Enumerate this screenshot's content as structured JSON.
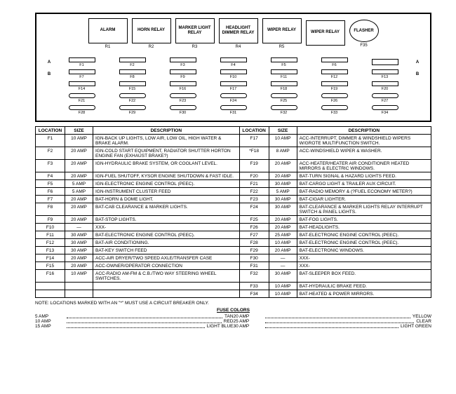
{
  "panel": {
    "relays": [
      {
        "label": "ALARM",
        "id": "R1"
      },
      {
        "label": "HORN RELAY",
        "id": "R2"
      },
      {
        "label": "MARKER LIGHT RELAY",
        "id": "R3"
      },
      {
        "label": "HEADLIGHT DIMMER RELAY",
        "id": "R4"
      },
      {
        "label": "WIPER RELAY",
        "id": "R5"
      },
      {
        "label": "WIPER RELAY",
        "id": ""
      }
    ],
    "flasher": {
      "label": "FLASHER",
      "id": "F35"
    },
    "fuse_rows": [
      {
        "left": "A",
        "right": "A",
        "shape": "rect",
        "labels": [
          "F1",
          "F2",
          "F3",
          "F4",
          "F5",
          "F6",
          ""
        ]
      },
      {
        "left": "B",
        "right": "B",
        "shape": "rect",
        "labels": [
          "F7",
          "F8",
          "F9",
          "F10",
          "F11",
          "F12",
          "F13"
        ]
      },
      {
        "left": "",
        "right": "",
        "shape": "rect",
        "labels": [
          "F14",
          "F15",
          "F16",
          "F17",
          "F18",
          "F19",
          "F20"
        ]
      },
      {
        "left": "",
        "right": "",
        "shape": "oval",
        "labels": [
          "F21",
          "F22",
          "F23",
          "F24",
          "F25",
          "F26",
          "F27"
        ]
      },
      {
        "left": "",
        "right": "",
        "shape": "oval",
        "labels": [
          "F28",
          "F29",
          "F30",
          "F31",
          "F32",
          "F33",
          "F34"
        ]
      }
    ]
  },
  "headers": {
    "location": "LOCATION",
    "size": "SIZE",
    "description": "DESCRIPTION"
  },
  "rows_left": [
    {
      "loc": "F1",
      "size": "10 AMP",
      "desc": "IGN-BACK UP LIGHTS, LOW AIR, LOW OIL, HIGH WATER & BRAKE ALARM."
    },
    {
      "loc": "F2",
      "size": "20 AMP",
      "desc": "IGN-COLD START EQUIPMENT, RADIATOR SHUTTER HORTON ENGINE FAN (EXHAUST BRAKE?)"
    },
    {
      "loc": "F3",
      "size": "20 AMP",
      "desc": "IGN-HYDRAULIC BRAKE SYSTEM, OR COOLANT LEVEL."
    },
    {
      "loc": "F4",
      "size": "20 AMP",
      "desc": "IGN-FUEL SHUTOFF, KYSOR ENGINE SHUTDOWN & FAST IDLE."
    },
    {
      "loc": "F5",
      "size": "5 AMP",
      "desc": "IGN-ELECTRONIC ENGINE CONTROL (PEEC)."
    },
    {
      "loc": "F6",
      "size": "5 AMP",
      "desc": "IGN-INSTRUMENT CLUSTER FEED"
    },
    {
      "loc": "F7",
      "size": "20 AMP",
      "desc": "BAT-HORN & DOME LIGHT."
    },
    {
      "loc": "F8",
      "size": "20 AMP",
      "desc": "BAT-CAB CLEARANCE & MARKER LIGHTS."
    },
    {
      "loc": "F9",
      "size": "20 AMP",
      "desc": "BAT-STOP LIGHTS."
    },
    {
      "loc": "F10",
      "size": "—",
      "desc": "XXX-"
    },
    {
      "loc": "F11",
      "size": "30 AMP",
      "desc": "BAT-ELECTRONIC ENGINE CONTROL (PEEC)."
    },
    {
      "loc": "F12",
      "size": "30 AMP",
      "desc": "BAT-AIR CONDITIONING."
    },
    {
      "loc": "F13",
      "size": "30 AMP",
      "desc": "BAT-KEY SWITCH FEED"
    },
    {
      "loc": "F14",
      "size": "20 AMP",
      "desc": "ACC-AIR DRYER/TWO SPEED AXLE/TRANSFER CASE"
    },
    {
      "loc": "F15",
      "size": "20 AMP",
      "desc": "ACC-OWNER/OPERATOR CONNECTION"
    },
    {
      "loc": "F16",
      "size": "10 AMP",
      "desc": "ACC-RADIO AM-FM & C.B./TWO WAY STEERING WHEEL SWITCHES."
    }
  ],
  "rows_right": [
    {
      "loc": "F17",
      "size": "10 AMP",
      "desc": "ACC-INTERRUPT, DIMMER & WINDSHIELD WIPERS W/GROTE MULTIFUNCTION SWITCH."
    },
    {
      "loc": "*F18",
      "size": "8 AMP",
      "desc": "ACC-WINDSHIELD WIPER & WASHER."
    },
    {
      "loc": "F19",
      "size": "20 AMP",
      "desc": "ACC-HEATER/HEATER AIR CONDITIONER HEATED MIRRORS & ELECTRIC WINDOWS."
    },
    {
      "loc": "F20",
      "size": "20 AMP",
      "desc": "BAT-TURN SIGNAL & HAZARD LIGHTS FEED."
    },
    {
      "loc": "F21",
      "size": "30 AMP",
      "desc": "BAT-CARGO LIGHT & TRAILER AUX CIRCUIT."
    },
    {
      "loc": "F22",
      "size": "5 AMP",
      "desc": "BAT-RADIO MEMORY & (?FUEL ECONOMY METER?)"
    },
    {
      "loc": "F23",
      "size": "30 AMP",
      "desc": "BAT-CIGAR LIGHTER."
    },
    {
      "loc": "F24",
      "size": "30 AMP",
      "desc": "BAT-CLEARANCE & MARKER LIGHTS RELAY INTERRUPT SWITCH & PANEL LIGHTS."
    },
    {
      "loc": "F25",
      "size": "20 AMP",
      "desc": "BAT-FOG LIGHTS."
    },
    {
      "loc": "F26",
      "size": "20 AMP",
      "desc": "BAT-HEADLIGHTS."
    },
    {
      "loc": "F27",
      "size": "25 AMP",
      "desc": "BAT-ELECTRONIC ENGINE CONTROL (PEEC)."
    },
    {
      "loc": "F28",
      "size": "10 AMP",
      "desc": "BAT-ELECTRONIC ENGINE CONTROL (PEEC)."
    },
    {
      "loc": "F29",
      "size": "20 AMP",
      "desc": "BAT-ELECTRONIC WINDOWS."
    },
    {
      "loc": "F30",
      "size": "—",
      "desc": "XXX-"
    },
    {
      "loc": "F31",
      "size": "—",
      "desc": "XXX-"
    },
    {
      "loc": "F32",
      "size": "30 AMP",
      "desc": "BAT-SLEEPER BOX FEED."
    },
    {
      "loc": "F33",
      "size": "10 AMP",
      "desc": "BAT-HYDRAULIC BRAKE FEED."
    },
    {
      "loc": "F34",
      "size": "10 AMP",
      "desc": "BAT-HEATED & POWER MIRRORS."
    }
  ],
  "note": "NOTE: LOCATIONS MARKED WITH AN \"*\" MUST USE A CIRCUIT BREAKER ONLY.",
  "colors_title": "FUSE COLORS",
  "colors": [
    {
      "amp": "5 AMP",
      "name": "TAN"
    },
    {
      "amp": "20 AMP",
      "name": "YELLOW"
    },
    {
      "amp": "10 AMP",
      "name": "RED"
    },
    {
      "amp": "25 AMP",
      "name": "CLEAR"
    },
    {
      "amp": "15 AMP",
      "name": "LIGHT BLUE"
    },
    {
      "amp": "30 AMP",
      "name": "LIGHT GREEN"
    }
  ]
}
